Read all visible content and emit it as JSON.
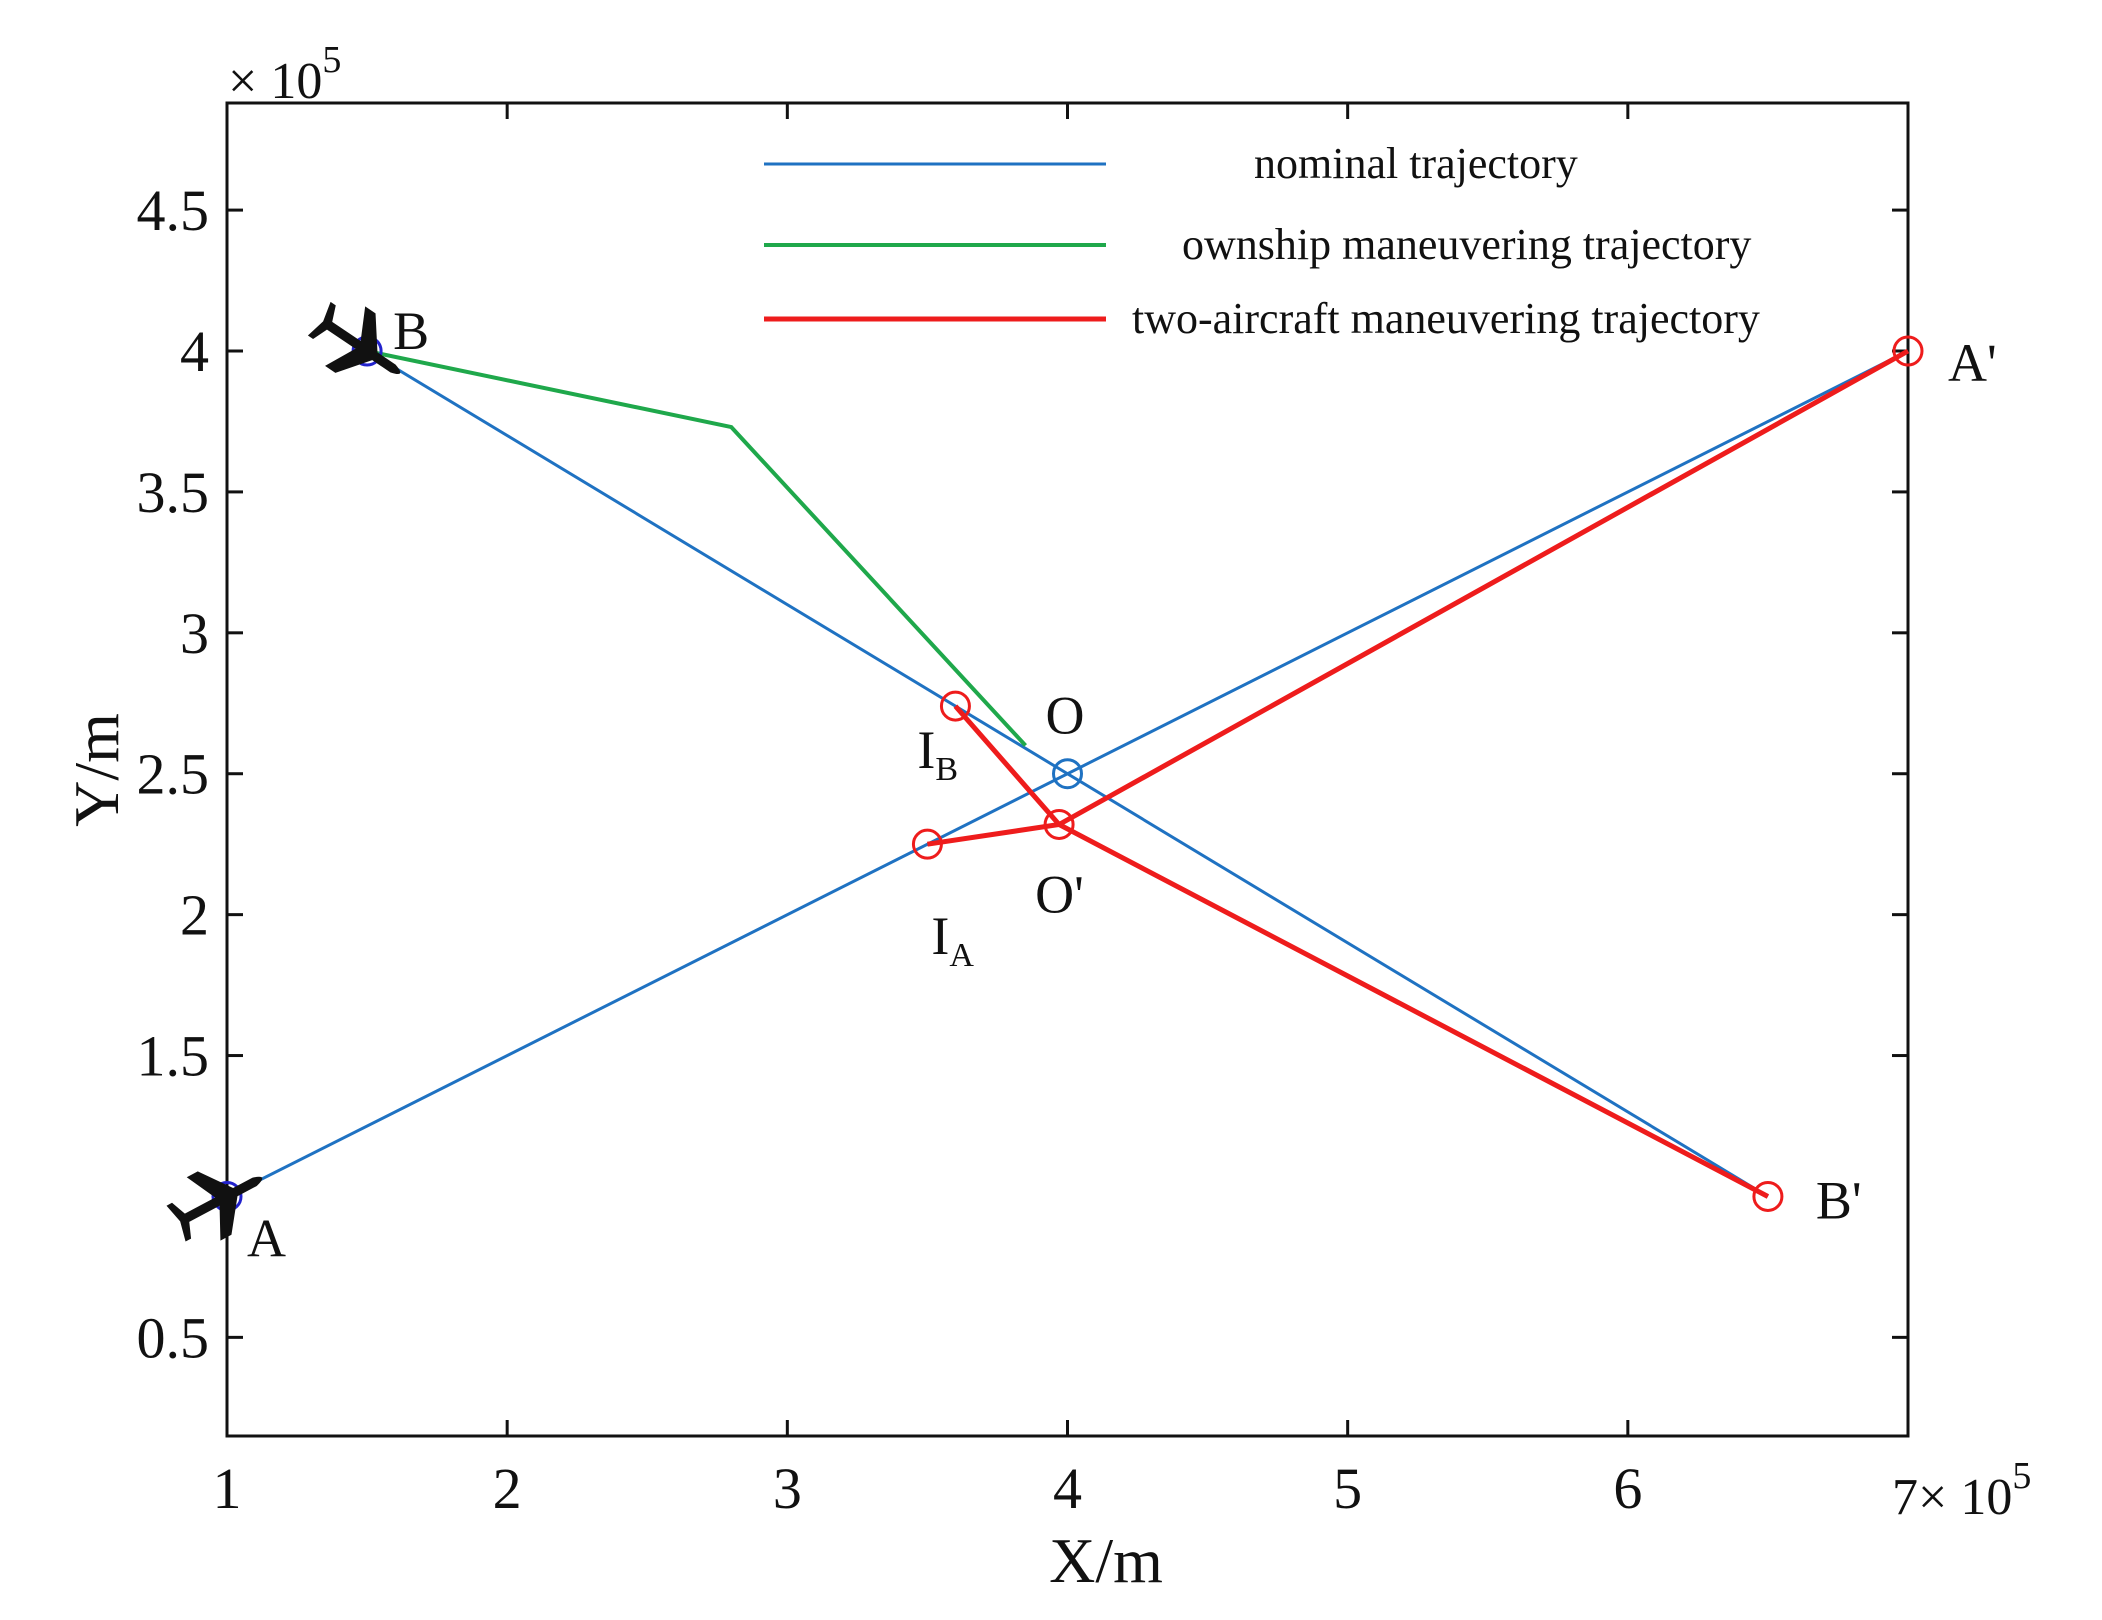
{
  "chart_data": {
    "type": "line",
    "title": "",
    "xlabel": "X/m",
    "ylabel": "Y/m",
    "x_multiplier": "× 10",
    "x_exponent": "5",
    "x_multiplier_prefix": "7",
    "y_multiplier": "× 10",
    "y_exponent": "5",
    "xlim": [
      1,
      7
    ],
    "ylim": [
      0.15,
      4.88
    ],
    "x_ticks": [
      1,
      2,
      3,
      4,
      5,
      6,
      7
    ],
    "x_tick_labels": [
      "1",
      "2",
      "3",
      "4",
      "5",
      "6",
      ""
    ],
    "y_ticks": [
      0.5,
      1.5,
      2,
      2.5,
      3,
      3.5,
      4,
      4.5
    ],
    "y_tick_labels": [
      "0.5",
      "1.5",
      "2",
      "2.5",
      "3",
      "3.5",
      "4",
      "4.5"
    ],
    "grid": false,
    "legend_position": "top-right",
    "series": [
      {
        "name": "nominal  trajectory",
        "color": "#1f72c2",
        "segments": [
          [
            [
              1.0,
              1.0
            ],
            [
              7.0,
              4.0
            ]
          ],
          [
            [
              1.5,
              4.0
            ],
            [
              6.5,
              1.0
            ]
          ]
        ]
      },
      {
        "name": "ownship maneuvering trajectory",
        "color": "#1fa84b",
        "segments": [
          [
            [
              1.5,
              4.0
            ],
            [
              2.8,
              3.73
            ],
            [
              3.85,
              2.6
            ]
          ]
        ]
      },
      {
        "name": "two-aircraft maneuvering trajectory",
        "color": "#ee1c1c",
        "segments": [
          [
            [
              3.5,
              2.25
            ],
            [
              3.97,
              2.32
            ],
            [
              7.0,
              4.0
            ]
          ],
          [
            [
              3.6,
              2.74
            ],
            [
              3.97,
              2.32
            ],
            [
              6.5,
              1.0
            ]
          ]
        ]
      }
    ],
    "points": [
      {
        "name": "A",
        "x": 1.0,
        "y": 1.0,
        "marker": "aircraft",
        "label": "A"
      },
      {
        "name": "B",
        "x": 1.5,
        "y": 4.0,
        "marker": "aircraft",
        "label": "B"
      },
      {
        "name": "O",
        "x": 4.0,
        "y": 2.5,
        "marker": "circle",
        "color": "#1f72c2",
        "label": "O"
      },
      {
        "name": "O'",
        "x": 3.97,
        "y": 2.32,
        "marker": "circle",
        "color": "#ee1c1c",
        "label": "O'"
      },
      {
        "name": "I_A",
        "x": 3.5,
        "y": 2.25,
        "marker": "circle",
        "color": "#ee1c1c",
        "label": "I",
        "sub": "A"
      },
      {
        "name": "I_B",
        "x": 3.6,
        "y": 2.74,
        "marker": "circle",
        "color": "#ee1c1c",
        "label": "I",
        "sub": "B"
      },
      {
        "name": "A'",
        "x": 7.0,
        "y": 4.0,
        "marker": "circle",
        "color": "#ee1c1c",
        "label": "A'"
      },
      {
        "name": "B'",
        "x": 6.5,
        "y": 1.0,
        "marker": "circle",
        "color": "#ee1c1c",
        "label": "B'"
      }
    ]
  }
}
